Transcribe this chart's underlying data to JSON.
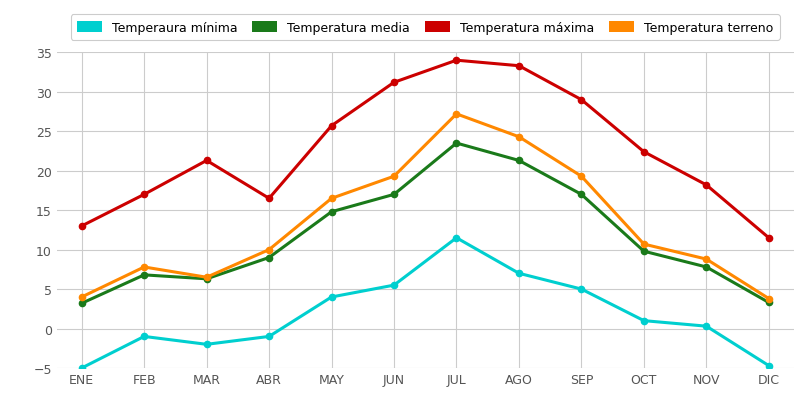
{
  "months": [
    "ENE",
    "FEB",
    "MAR",
    "ABR",
    "MAY",
    "JUN",
    "JUL",
    "AGO",
    "SEP",
    "OCT",
    "NOV",
    "DIC"
  ],
  "temp_minima": [
    -5,
    -1,
    -2,
    -1,
    4,
    5.5,
    11.5,
    7,
    5,
    1,
    0.3,
    -4.7
  ],
  "temp_media": [
    3.2,
    6.8,
    6.3,
    9.0,
    14.8,
    17.0,
    23.5,
    21.3,
    17.0,
    9.8,
    7.8,
    3.3
  ],
  "temp_maxima": [
    13,
    17,
    21.3,
    16.5,
    25.7,
    31.2,
    34.0,
    33.3,
    29.0,
    22.4,
    18.2,
    11.5
  ],
  "temp_terreno": [
    4.0,
    7.8,
    6.5,
    10.0,
    16.5,
    19.3,
    27.2,
    24.3,
    19.3,
    10.7,
    8.8,
    3.8
  ],
  "color_minima": "#00cfcf",
  "color_media": "#1a7a1a",
  "color_maxima": "#cc0000",
  "color_terreno": "#ff8800",
  "label_minima": "Temperaura mínima",
  "label_media": "Temperatura media",
  "label_maxima": "Temperatura máxima",
  "label_terreno": "Temperatura terreno",
  "ylim": [
    -5,
    35
  ],
  "yticks": [
    -5,
    0,
    5,
    10,
    15,
    20,
    25,
    30,
    35
  ],
  "background_color": "#ffffff",
  "grid_color": "#cccccc",
  "linewidth": 2.2,
  "markersize": 4.5
}
